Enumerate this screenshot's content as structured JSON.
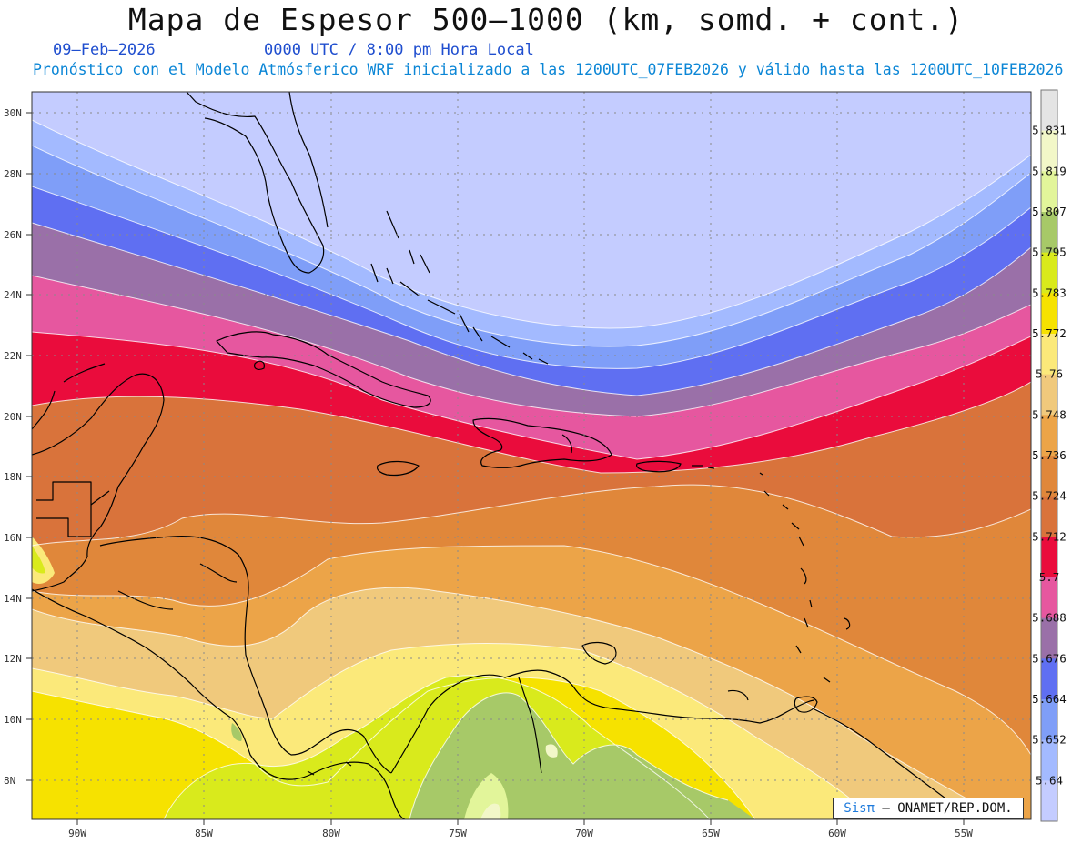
{
  "title": "Mapa de Espesor 500—1000 (km, somd. + cont.)",
  "date": "09–Feb–2026",
  "time": "0000 UTC / 8:00 pm Hora Local",
  "subtitle": "Pronóstico con el Modelo Atmósferico WRF inicializado a las 1200UTC_07FEB2026 y válido hasta las  1200UTC_10FEB2026",
  "latitude_labels": [
    "30N",
    "28N",
    "26N",
    "24N",
    "22N",
    "20N",
    "18N",
    "16N",
    "14N",
    "12N",
    "10N",
    "8N"
  ],
  "longitude_labels": [
    "90W",
    "85W",
    "80W",
    "75W",
    "70W",
    "65W",
    "60W",
    "55W"
  ],
  "colorbar": {
    "labels": [
      "5.831",
      "5.819",
      "5.807",
      "5.795",
      "5.783",
      "5.772",
      "5.76",
      "5.748",
      "5.736",
      "5.724",
      "5.712",
      "5.7",
      "5.688",
      "5.676",
      "5.664",
      "5.652",
      "5.64"
    ],
    "colors": [
      "#e4e4e4",
      "#f2f7c8",
      "#e2f59a",
      "#a7c968",
      "#d9ea1c",
      "#f6e200",
      "#fbe97a",
      "#f0c97c",
      "#eca448",
      "#e0873a",
      "#d9733b",
      "#ea0c3c",
      "#e6579f",
      "#9a70a8",
      "#5f6ff2",
      "#7f9ef8",
      "#a3baff",
      "#c4ccff"
    ]
  },
  "credit": {
    "logo": "Sisπ",
    "text": " – ONAMET/REP.DOM."
  }
}
